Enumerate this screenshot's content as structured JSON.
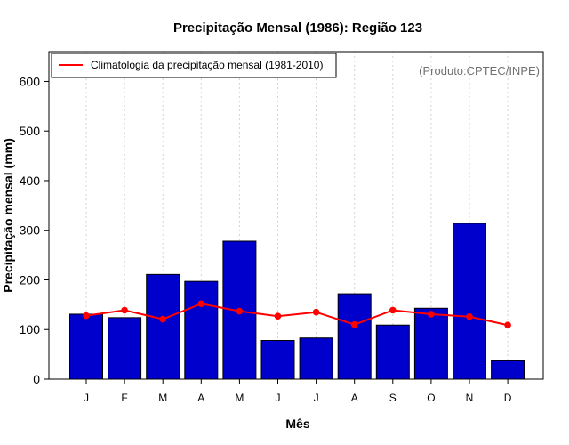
{
  "chart_data": {
    "type": "bar",
    "title": "Precipitação Mensal (1986): Região 123",
    "xlabel": "Mês",
    "ylabel": "Precipitação mensal (mm)",
    "categories": [
      "J",
      "F",
      "M",
      "A",
      "M",
      "J",
      "J",
      "A",
      "S",
      "O",
      "N",
      "D"
    ],
    "ylim": [
      0,
      660
    ],
    "yticks": [
      0,
      100,
      200,
      300,
      400,
      500,
      600
    ],
    "grid": "vertical dotted",
    "series": [
      {
        "name": "Precipitação mensal (1986)",
        "type": "bar",
        "color": "#0000cc",
        "values": [
          131,
          124,
          211,
          197,
          278,
          78,
          83,
          172,
          109,
          143,
          314,
          37
        ]
      },
      {
        "name": "Climatologia da precipitação mensal (1981-2010)",
        "type": "line",
        "color": "#ff0000",
        "values": [
          128,
          139,
          121,
          152,
          137,
          127,
          135,
          110,
          139,
          131,
          126,
          109
        ]
      }
    ],
    "legend": {
      "entries": [
        "Climatologia da precipitação mensal (1981-2010)"
      ],
      "position": "top-left"
    },
    "annotation": "(Produto:CPTEC/INPE)"
  }
}
